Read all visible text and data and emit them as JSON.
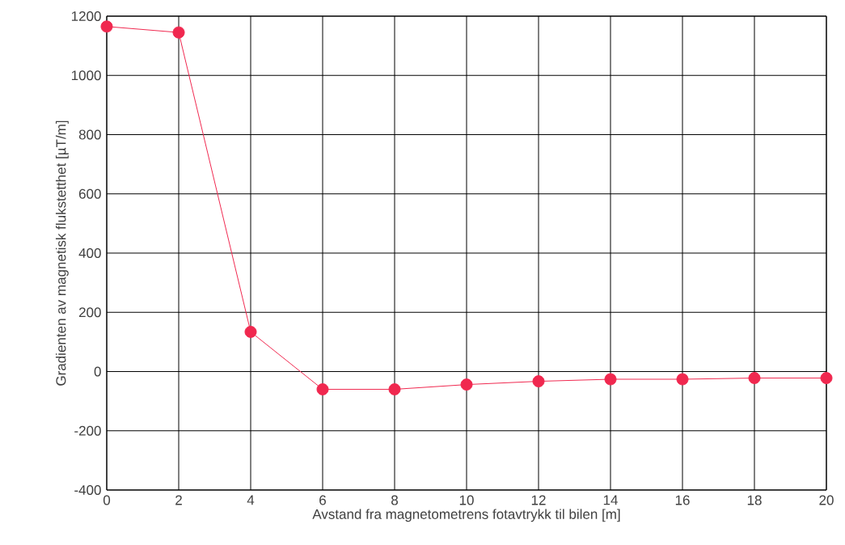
{
  "chart_data": {
    "type": "line",
    "xlabel": "Avstand fra magnetometrens fotavtrykk til bilen [m]",
    "ylabel": "Gradienten av magnetisk flukstetthet [µT/m]",
    "x": [
      0,
      2,
      4,
      6,
      8,
      10,
      12,
      14,
      16,
      18,
      20
    ],
    "series": [
      {
        "color": "#f0284f",
        "values": [
          1165,
          1145,
          134,
          -60,
          -60,
          -44,
          -33,
          -26,
          -26,
          -22,
          -22
        ]
      }
    ],
    "xlim": [
      0,
      20
    ],
    "ylim": [
      -400,
      1200
    ],
    "xticks": [
      0,
      2,
      4,
      6,
      8,
      10,
      12,
      14,
      16,
      18,
      20
    ],
    "yticks": [
      -400,
      -200,
      0,
      200,
      400,
      600,
      800,
      1000,
      1200
    ],
    "grid": true,
    "marker": "circle",
    "line_style": "solid"
  }
}
